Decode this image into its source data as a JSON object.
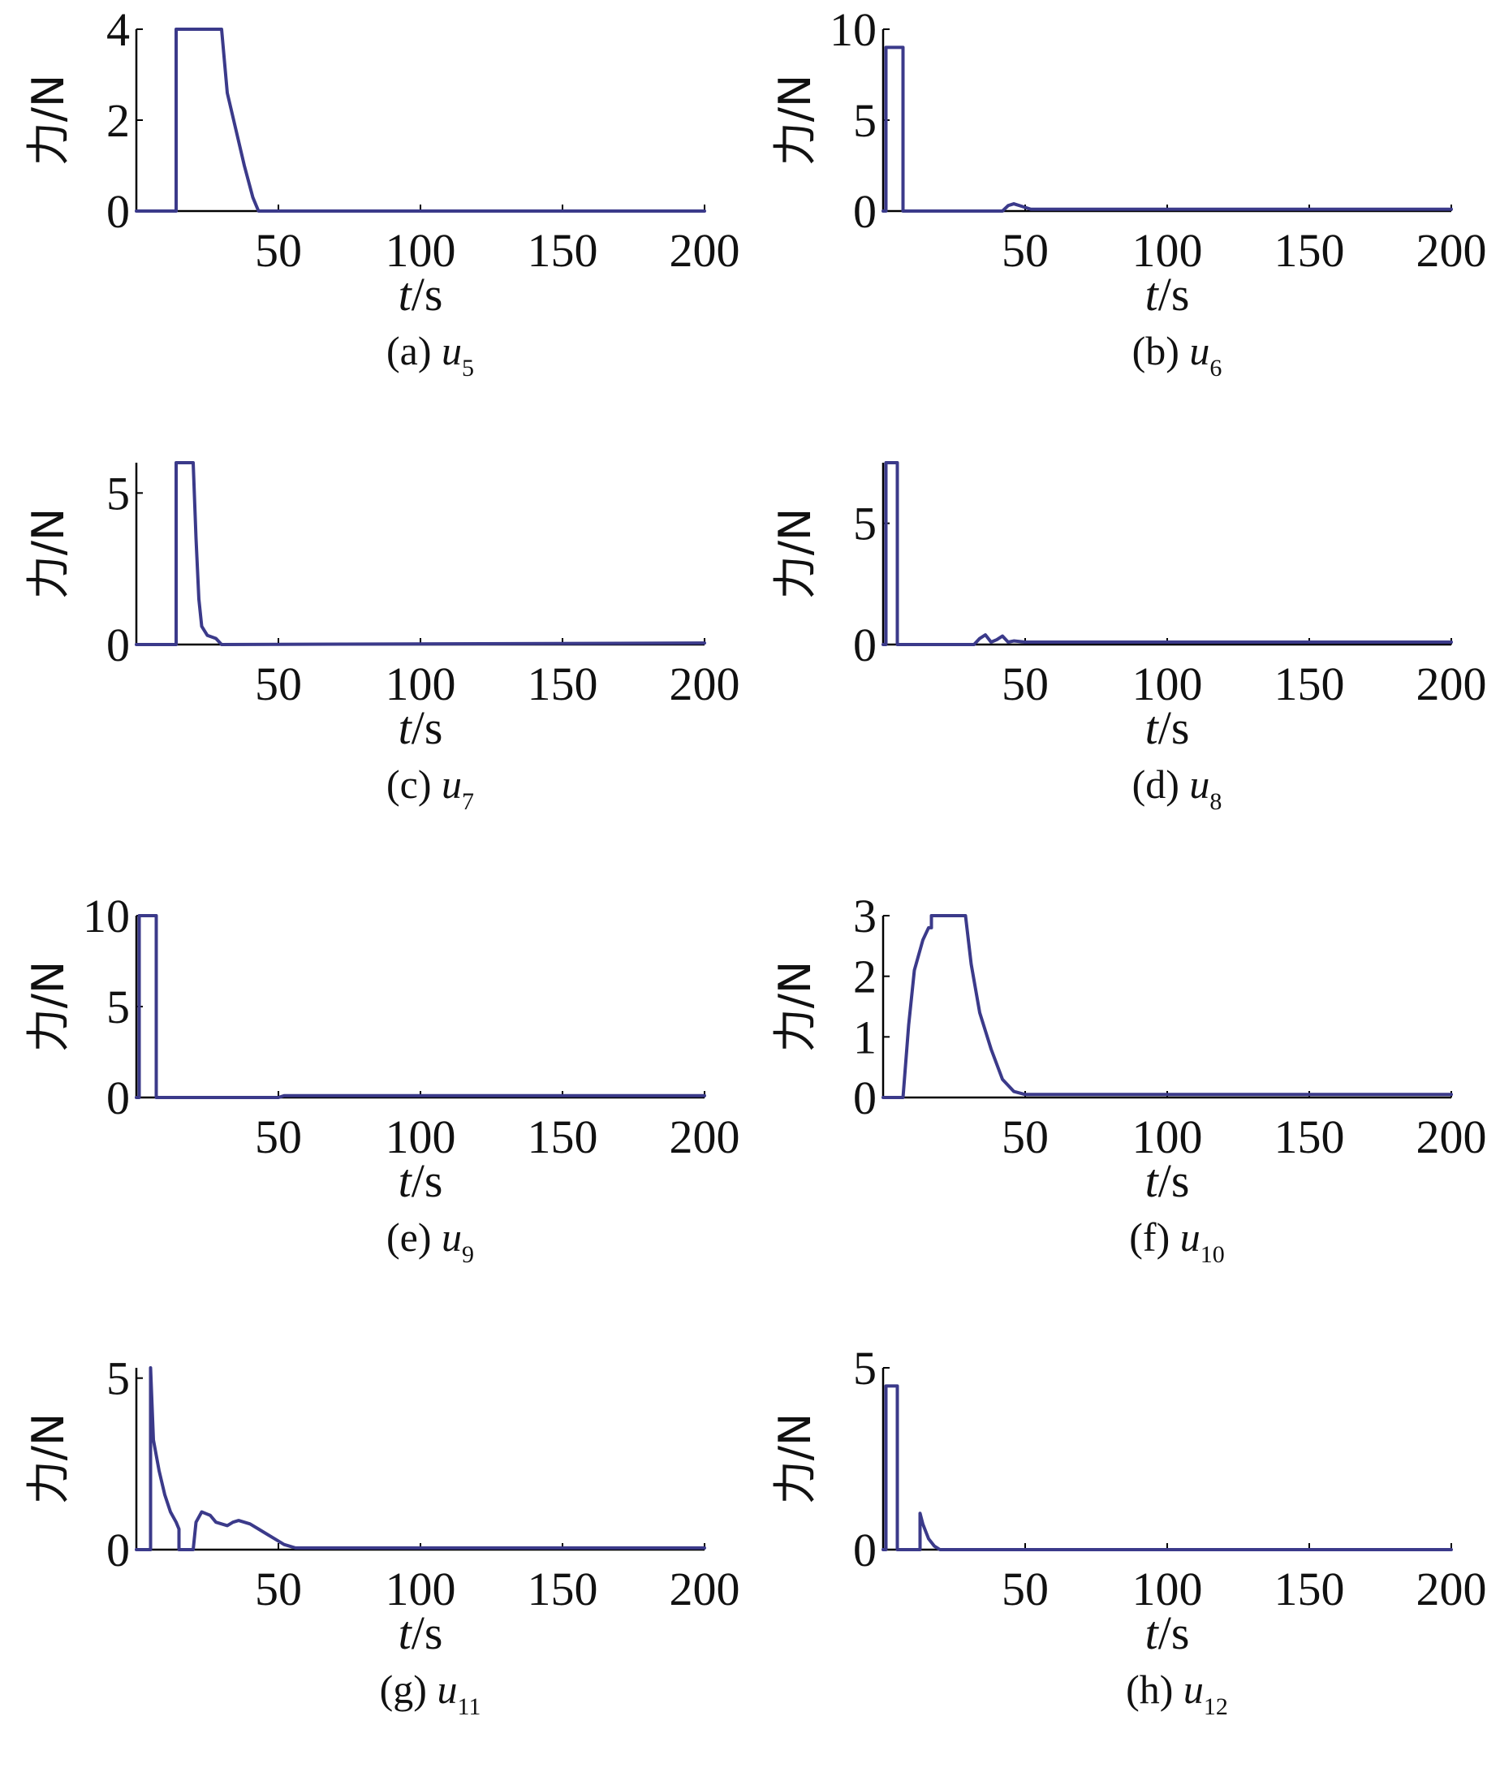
{
  "chart_data": [
    {
      "type": "line",
      "caption_letter": "(a)",
      "caption_var": "u",
      "caption_sub": "5",
      "xlabel_var": "t",
      "xlabel_unit": "/s",
      "ylabel": "力/N",
      "xlim": [
        0,
        200
      ],
      "ylim": [
        0,
        4
      ],
      "xticks": [
        50,
        100,
        150,
        200
      ],
      "yticks": [
        0,
        2,
        4
      ],
      "line_color": "#3b3a8a",
      "series": [
        {
          "x": [
            0,
            14,
            14,
            30,
            32,
            35,
            38,
            41,
            43,
            200
          ],
          "y": [
            0,
            0,
            4,
            4,
            2.6,
            1.8,
            1.0,
            0.3,
            0,
            0
          ]
        }
      ]
    },
    {
      "type": "line",
      "caption_letter": "(b)",
      "caption_var": "u",
      "caption_sub": "6",
      "xlabel_var": "t",
      "xlabel_unit": "/s",
      "ylabel": "力/N",
      "xlim": [
        0,
        200
      ],
      "ylim": [
        0,
        10
      ],
      "xticks": [
        50,
        100,
        150,
        200
      ],
      "yticks": [
        0,
        5,
        10
      ],
      "line_color": "#3b3a8a",
      "series": [
        {
          "x": [
            0,
            1,
            1,
            7,
            7,
            42,
            44,
            46,
            48,
            50,
            52,
            200
          ],
          "y": [
            0,
            0,
            9,
            9,
            0,
            0,
            0.3,
            0.4,
            0.3,
            0.2,
            0.1,
            0.1
          ]
        }
      ]
    },
    {
      "type": "line",
      "caption_letter": "(c)",
      "caption_var": "u",
      "caption_sub": "7",
      "xlabel_var": "t",
      "xlabel_unit": "/s",
      "ylabel": "力/N",
      "xlim": [
        0,
        200
      ],
      "ylim": [
        0,
        6
      ],
      "xticks": [
        50,
        100,
        150,
        200
      ],
      "yticks": [
        0,
        5
      ],
      "line_color": "#3b3a8a",
      "series": [
        {
          "x": [
            0,
            14,
            14,
            20,
            21,
            22,
            23,
            25,
            28,
            30,
            200
          ],
          "y": [
            0,
            0,
            6,
            6,
            3.5,
            1.5,
            0.6,
            0.3,
            0.2,
            0,
            0.05
          ]
        }
      ]
    },
    {
      "type": "line",
      "caption_letter": "(d)",
      "caption_var": "u",
      "caption_sub": "8",
      "xlabel_var": "t",
      "xlabel_unit": "/s",
      "ylabel": "力/N",
      "xlim": [
        0,
        200
      ],
      "ylim": [
        0,
        7.5
      ],
      "xticks": [
        50,
        100,
        150,
        200
      ],
      "yticks": [
        0,
        5
      ],
      "line_color": "#3b3a8a",
      "series": [
        {
          "x": [
            0,
            1,
            1,
            5,
            5,
            32,
            34,
            36,
            38,
            40,
            42,
            44,
            46,
            50,
            200
          ],
          "y": [
            0,
            0,
            7.5,
            7.5,
            0,
            0,
            0.25,
            0.4,
            0.1,
            0.2,
            0.35,
            0.1,
            0.15,
            0.1,
            0.1
          ]
        }
      ]
    },
    {
      "type": "line",
      "caption_letter": "(e)",
      "caption_var": "u",
      "caption_sub": "9",
      "xlabel_var": "t",
      "xlabel_unit": "/s",
      "ylabel": "力/N",
      "xlim": [
        0,
        200
      ],
      "ylim": [
        0,
        10
      ],
      "xticks": [
        50,
        100,
        150,
        200
      ],
      "yticks": [
        0,
        5,
        10
      ],
      "line_color": "#3b3a8a",
      "series": [
        {
          "x": [
            0,
            1,
            1,
            7,
            7,
            50,
            52,
            200
          ],
          "y": [
            0,
            0,
            10,
            10,
            0,
            0,
            0.1,
            0.1
          ]
        }
      ]
    },
    {
      "type": "line",
      "caption_letter": "(f)",
      "caption_var": "u",
      "caption_sub": "10",
      "xlabel_var": "t",
      "xlabel_unit": "/s",
      "ylabel": "力/N",
      "xlim": [
        0,
        200
      ],
      "ylim": [
        0,
        3
      ],
      "xticks": [
        50,
        100,
        150,
        200
      ],
      "yticks": [
        0,
        1,
        2,
        3
      ],
      "line_color": "#3b3a8a",
      "series": [
        {
          "x": [
            0,
            7,
            7,
            9,
            11,
            14,
            16,
            17,
            17,
            29,
            31,
            34,
            38,
            42,
            46,
            50,
            200
          ],
          "y": [
            0,
            0,
            0,
            1.2,
            2.1,
            2.6,
            2.8,
            2.8,
            3,
            3,
            2.2,
            1.4,
            0.8,
            0.3,
            0.1,
            0.05,
            0.05
          ]
        }
      ]
    },
    {
      "type": "line",
      "caption_letter": "(g)",
      "caption_var": "u",
      "caption_sub": "11",
      "xlabel_var": "t",
      "xlabel_unit": "/s",
      "ylabel": "力/N",
      "xlim": [
        0,
        200
      ],
      "ylim": [
        0,
        5.3
      ],
      "xticks": [
        50,
        100,
        150,
        200
      ],
      "yticks": [
        0,
        5
      ],
      "line_color": "#3b3a8a",
      "series": [
        {
          "x": [
            0,
            5,
            5,
            6,
            8,
            10,
            12,
            14,
            15,
            15,
            20,
            21,
            23,
            26,
            28,
            30,
            32,
            34,
            36,
            38,
            40,
            43,
            46,
            49,
            52,
            56,
            200
          ],
          "y": [
            0,
            0,
            5.3,
            3.2,
            2.3,
            1.6,
            1.1,
            0.8,
            0.6,
            0,
            0,
            0.8,
            1.1,
            1.0,
            0.8,
            0.75,
            0.7,
            0.8,
            0.85,
            0.8,
            0.75,
            0.6,
            0.45,
            0.3,
            0.15,
            0.05,
            0.05
          ]
        }
      ]
    },
    {
      "type": "line",
      "caption_letter": "(h)",
      "caption_var": "u",
      "caption_sub": "12",
      "xlabel_var": "t",
      "xlabel_unit": "/s",
      "ylabel": "力/N",
      "xlim": [
        0,
        200
      ],
      "ylim": [
        0,
        5
      ],
      "xticks": [
        50,
        100,
        150,
        200
      ],
      "yticks": [
        0,
        5
      ],
      "line_color": "#3b3a8a",
      "series": [
        {
          "x": [
            0,
            1,
            1,
            5,
            5,
            13,
            13,
            14,
            16,
            18,
            20,
            200
          ],
          "y": [
            0,
            0,
            4.5,
            4.5,
            0,
            0,
            1,
            0.7,
            0.3,
            0.1,
            0,
            0
          ]
        }
      ]
    }
  ]
}
